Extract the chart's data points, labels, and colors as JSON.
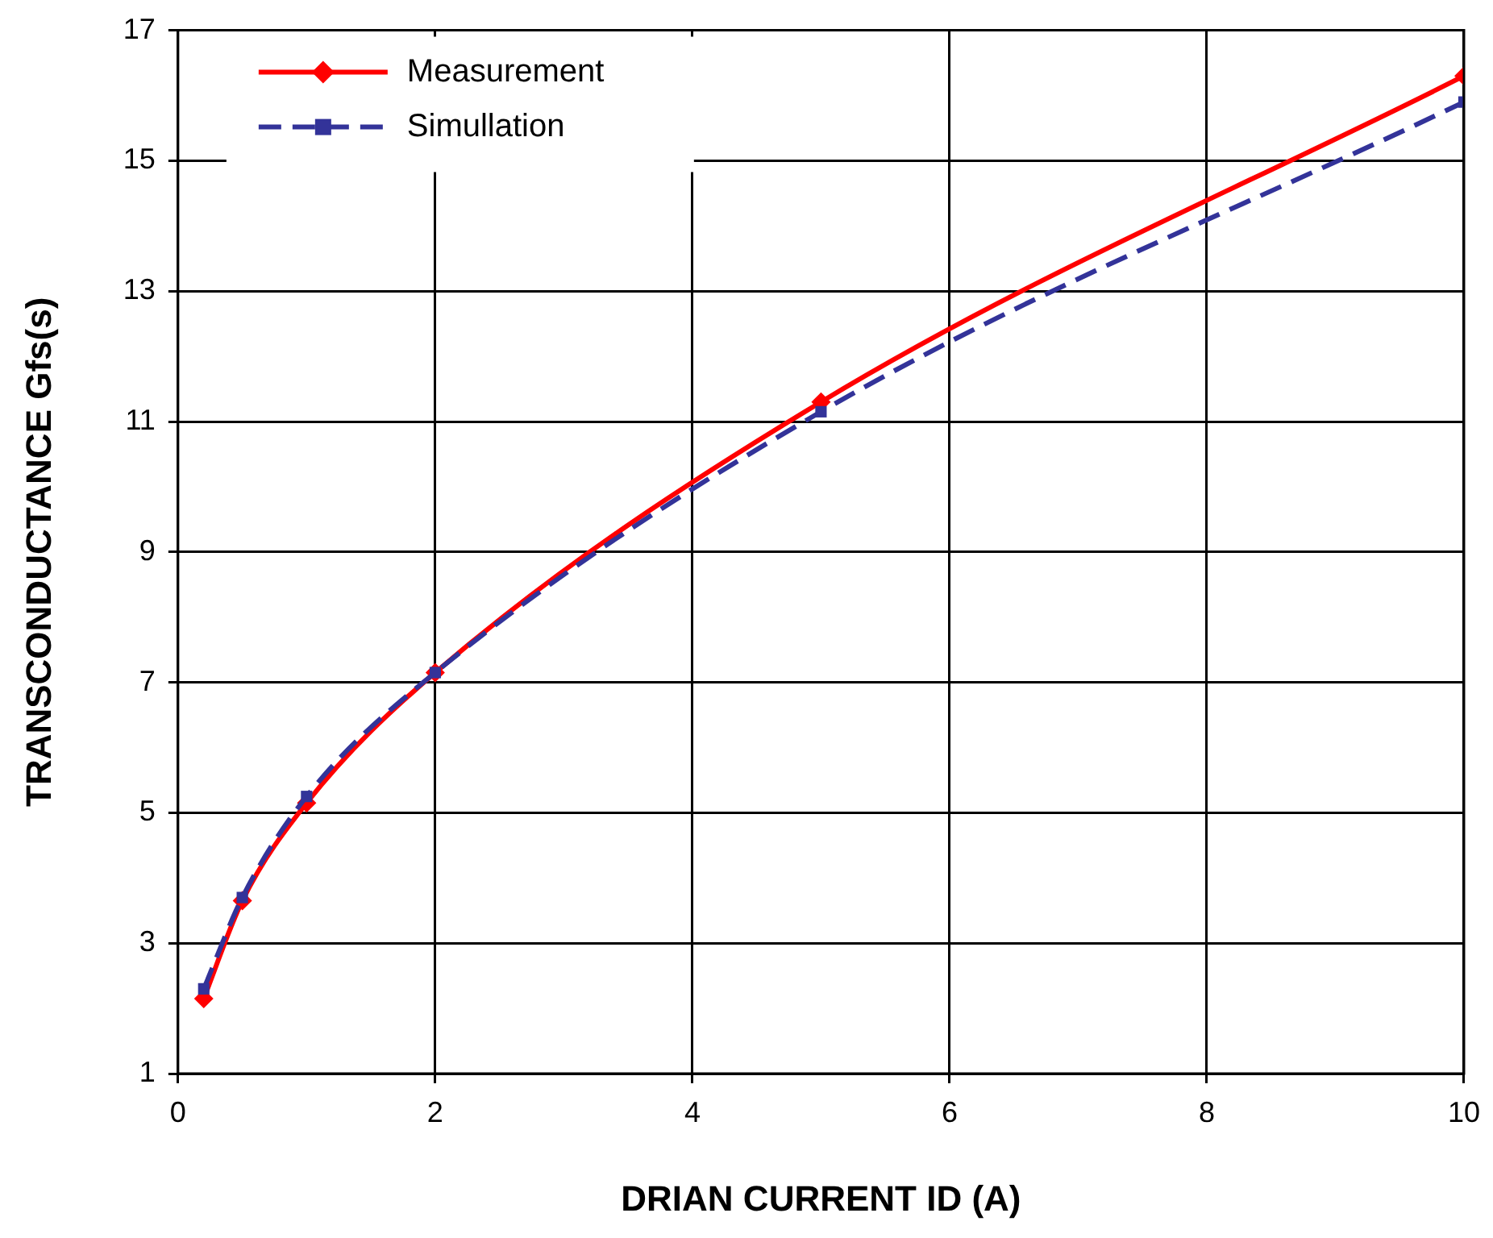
{
  "chart_data": {
    "type": "line",
    "xlabel": "DRIAN CURRENT ID (A)",
    "ylabel": "TRANSCONDUCTANCE Gfs(s)",
    "x": [
      0.2,
      0.5,
      1,
      2,
      5,
      10
    ],
    "series": [
      {
        "name": "Measurement",
        "color": "#ff0000",
        "marker": "diamond",
        "line_style": "solid",
        "values": [
          2.15,
          3.65,
          5.15,
          7.15,
          11.3,
          16.3
        ]
      },
      {
        "name": "Simullation",
        "color": "#333399",
        "marker": "square",
        "line_style": "dashed",
        "values": [
          2.3,
          3.7,
          5.25,
          7.15,
          11.15,
          15.9
        ]
      }
    ],
    "xlim": [
      0,
      10
    ],
    "xticks": [
      0,
      2,
      4,
      6,
      8,
      10
    ],
    "ylim": [
      1,
      17
    ],
    "yticks": [
      1,
      3,
      5,
      7,
      9,
      11,
      13,
      15,
      17
    ],
    "grid": true,
    "legend": "top left"
  }
}
